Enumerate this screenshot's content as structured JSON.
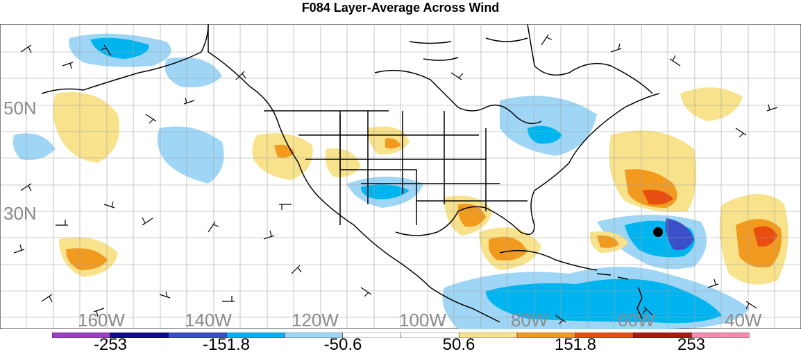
{
  "title": "F084 Layer-Average Across Wind",
  "lat_labels": [
    "50N",
    "30N"
  ],
  "lon_labels": [
    "160W",
    "140W",
    "120W",
    "100W",
    "80W",
    "60W",
    "40W"
  ],
  "colorbar": {
    "colors": [
      "#9c3fc0",
      "#0c0c8c",
      "#3a4fc8",
      "#00b4f0",
      "#9fd6f5",
      "#ffffff",
      "#ffffff",
      "#f8e38c",
      "#f29a1e",
      "#e84e10",
      "#aa1a10",
      "#f28cb0"
    ],
    "labels": [
      "-253",
      "-151.8",
      "-50.6",
      "50.6",
      "151.8",
      "253"
    ]
  },
  "marker": {
    "type": "storm-center-dot",
    "color": "#000000"
  }
}
